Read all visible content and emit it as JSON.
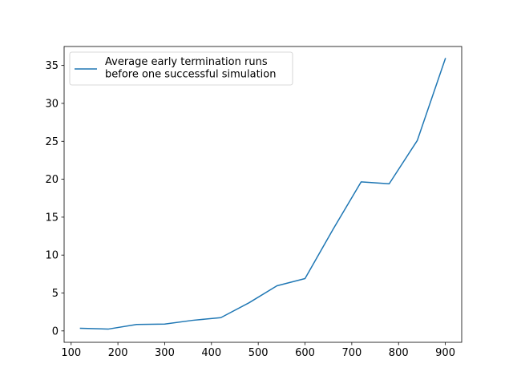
{
  "chart_data": {
    "type": "line",
    "title": "",
    "xlabel": "",
    "ylabel": "",
    "xlim": [
      85,
      935
    ],
    "ylim": [
      -1.5,
      37.5
    ],
    "x_ticks": [
      100,
      200,
      300,
      400,
      500,
      600,
      700,
      800,
      900
    ],
    "y_ticks": [
      0,
      5,
      10,
      15,
      20,
      25,
      30,
      35
    ],
    "grid": false,
    "legend_position": "top-left",
    "series": [
      {
        "name": "Average early termination runs\nbefore one successful simulation",
        "color": "#1f77b4",
        "x": [
          120,
          180,
          240,
          300,
          360,
          420,
          480,
          540,
          600,
          660,
          720,
          780,
          840,
          900
        ],
        "y": [
          0.35,
          0.25,
          0.85,
          0.9,
          1.4,
          1.75,
          3.7,
          5.95,
          6.9,
          13.4,
          19.65,
          19.4,
          25.1,
          35.9
        ]
      }
    ]
  }
}
